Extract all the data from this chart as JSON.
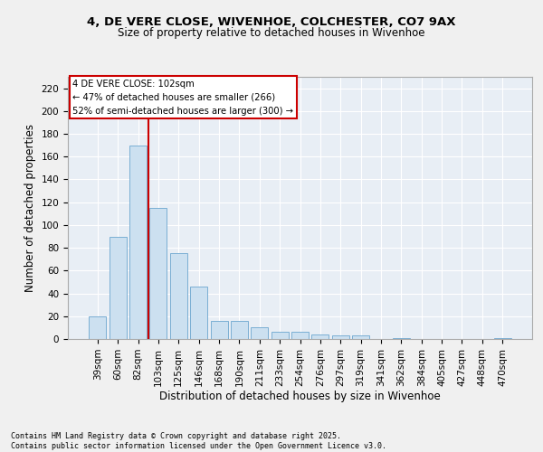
{
  "title_line1": "4, DE VERE CLOSE, WIVENHOE, COLCHESTER, CO7 9AX",
  "title_line2": "Size of property relative to detached houses in Wivenhoe",
  "xlabel": "Distribution of detached houses by size in Wivenhoe",
  "ylabel": "Number of detached properties",
  "categories": [
    "39sqm",
    "60sqm",
    "82sqm",
    "103sqm",
    "125sqm",
    "146sqm",
    "168sqm",
    "190sqm",
    "211sqm",
    "233sqm",
    "254sqm",
    "276sqm",
    "297sqm",
    "319sqm",
    "341sqm",
    "362sqm",
    "384sqm",
    "405sqm",
    "427sqm",
    "448sqm",
    "470sqm"
  ],
  "values": [
    20,
    90,
    170,
    115,
    75,
    46,
    16,
    16,
    10,
    6,
    6,
    4,
    3,
    3,
    0,
    1,
    0,
    0,
    0,
    0,
    1
  ],
  "bar_color": "#cce0f0",
  "bar_edge_color": "#7bafd4",
  "vline_color": "#cc0000",
  "annotation_text": "4 DE VERE CLOSE: 102sqm\n← 47% of detached houses are smaller (266)\n52% of semi-detached houses are larger (300) →",
  "annotation_box_color": "#ffffff",
  "annotation_box_edge": "#cc0000",
  "ylim": [
    0,
    230
  ],
  "yticks": [
    0,
    20,
    40,
    60,
    80,
    100,
    120,
    140,
    160,
    180,
    200,
    220
  ],
  "background_color": "#e8eef5",
  "grid_color": "#ffffff",
  "footer_line1": "Contains HM Land Registry data © Crown copyright and database right 2025.",
  "footer_line2": "Contains public sector information licensed under the Open Government Licence v3.0."
}
